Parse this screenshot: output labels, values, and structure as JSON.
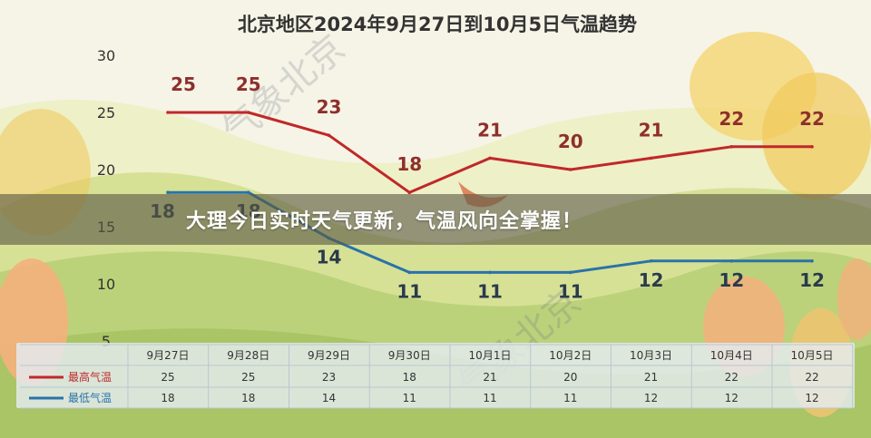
{
  "chart_data": {
    "type": "line",
    "title": "北京地区2024年9月27日到10月5日气温趋势",
    "categories": [
      "9月27日",
      "9月28日",
      "9月29日",
      "9月30日",
      "10月1日",
      "10月2日",
      "10月3日",
      "10月4日",
      "10月5日"
    ],
    "series": [
      {
        "name": "最高气温",
        "color": "#c0282a",
        "values": [
          25,
          25,
          23,
          18,
          21,
          20,
          21,
          22,
          22
        ]
      },
      {
        "name": "最低气温",
        "color": "#2a72a8",
        "values": [
          18,
          18,
          14,
          11,
          11,
          11,
          12,
          12,
          12
        ]
      }
    ],
    "ylim": [
      5,
      30
    ],
    "yticks": [
      5,
      10,
      15,
      20,
      25,
      30
    ],
    "grid": false,
    "legend": "bottom-left table",
    "watermarks": [
      "气象北京",
      "气象北京"
    ]
  },
  "overlay": {
    "headline": "大理今日实时天气更新，气温风向全掌握！"
  },
  "colors": {
    "hill_light": "#e3e8a8",
    "hill_green": "#b9cf73",
    "tree_yellow": "#f1cf63",
    "tree_orange": "#f4b07c",
    "title_text": "#333333",
    "table_bg": "#e4ecf2"
  }
}
